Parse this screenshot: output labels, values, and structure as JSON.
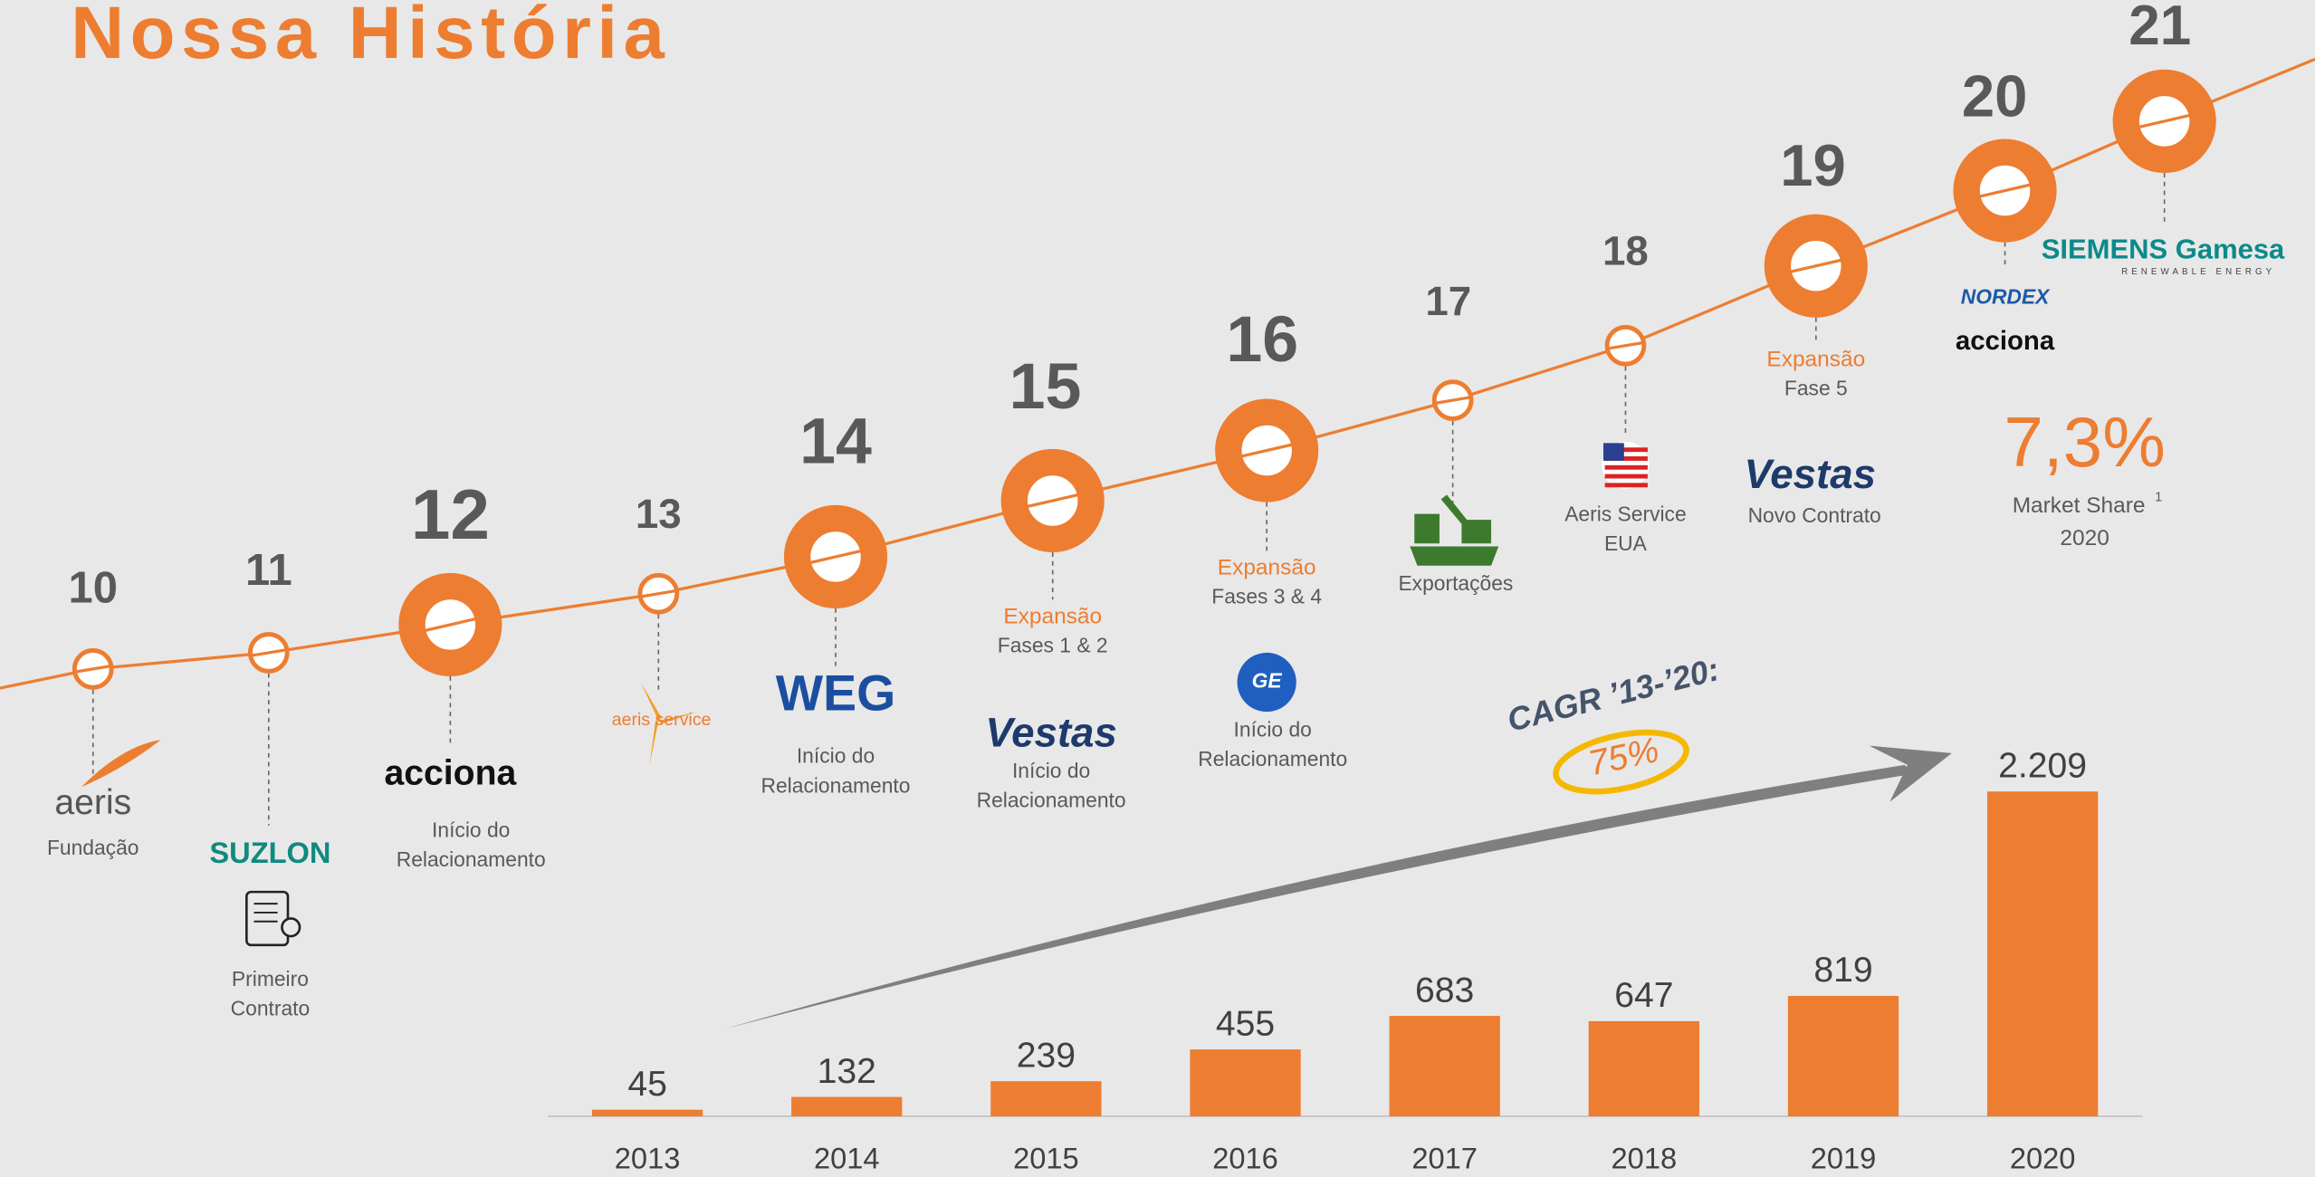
{
  "title": "Nossa História",
  "timeline": [
    {
      "year": "10",
      "logo": "aeris",
      "lines": [
        "Fundação"
      ]
    },
    {
      "year": "11",
      "logo": "SUZLON",
      "lines": [
        "Primeiro",
        "Contrato"
      ]
    },
    {
      "year": "12",
      "logo": "acciona",
      "lines": [
        "Início do",
        "Relacionamento"
      ]
    },
    {
      "year": "13",
      "logo": "aeris service"
    },
    {
      "year": "14",
      "logo": "WEG",
      "lines": [
        "Início do",
        "Relacionamento"
      ]
    },
    {
      "year": "15",
      "highlight": "Expansão",
      "sub": "Fases 1 & 2",
      "logo": "Vestas",
      "lines": [
        "Início do",
        "Relacionamento"
      ]
    },
    {
      "year": "16",
      "highlight": "Expansão",
      "sub": "Fases 3 & 4",
      "logo": "GE",
      "lines": [
        "Início do",
        "Relacionamento"
      ]
    },
    {
      "year": "17",
      "lines": [
        "Exportações"
      ]
    },
    {
      "year": "18",
      "lines": [
        "Aeris Service",
        "EUA"
      ]
    },
    {
      "year": "19",
      "highlight": "Expansão",
      "sub": "Fase 5",
      "logo": "Vestas",
      "lines": [
        "Novo Contrato"
      ]
    },
    {
      "year": "20",
      "logos": [
        "NORDEX",
        "acciona"
      ]
    },
    {
      "year": "21",
      "logo": "SIEMENS Gamesa",
      "logo_tagline": "RENEWABLE ENERGY"
    }
  ],
  "market_share": {
    "value": "7,3%",
    "label": "Market Share",
    "footnote": "1",
    "year": "2020"
  },
  "cagr": {
    "label": "CAGR ’13-’20:",
    "value": "75%"
  },
  "chart_data": {
    "type": "bar",
    "categories": [
      "2013",
      "2014",
      "2015",
      "2016",
      "2017",
      "2018",
      "2019",
      "2020"
    ],
    "values": [
      45,
      132,
      239,
      455,
      683,
      647,
      819,
      2209
    ],
    "value_labels": [
      "45",
      "132",
      "239",
      "455",
      "683",
      "647",
      "819",
      "2.209"
    ],
    "color": "#ED7D31"
  }
}
